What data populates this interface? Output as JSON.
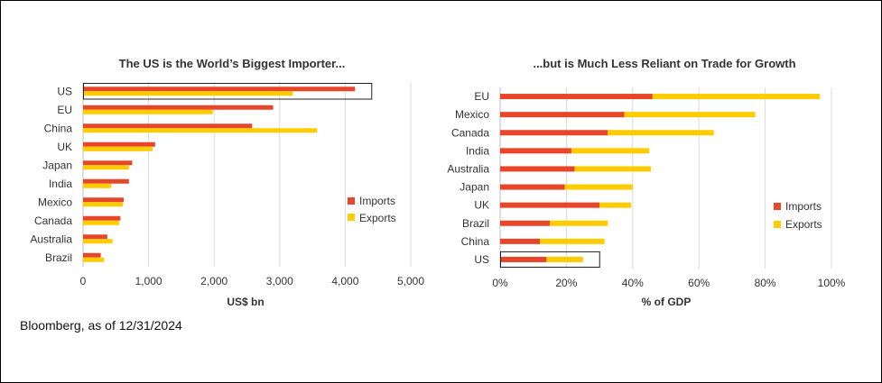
{
  "source": "Bloomberg, as of 12/31/2024",
  "colors": {
    "imports": "#E8462A",
    "exports": "#FFCC00",
    "grid": "#d9d9d9"
  },
  "chart_data": [
    {
      "type": "bar",
      "orientation": "horizontal",
      "title": "The US is the World’s Biggest Importer...",
      "xlabel": "US$ bn",
      "xlim": [
        0,
        5000
      ],
      "ticks": [
        "0",
        "1,000",
        "2,000",
        "3,000",
        "4,000",
        "5,000"
      ],
      "tick_values": [
        0,
        1000,
        2000,
        3000,
        4000,
        5000
      ],
      "categories": [
        "US",
        "EU",
        "China",
        "UK",
        "Japan",
        "India",
        "Mexico",
        "Canada",
        "Australia",
        "Brazil"
      ],
      "highlight": "US",
      "grid": true,
      "legend_position": "right",
      "series": [
        {
          "name": "Imports",
          "values": [
            4150,
            2900,
            2580,
            1100,
            750,
            700,
            620,
            570,
            370,
            270
          ]
        },
        {
          "name": "Exports",
          "values": [
            3200,
            1980,
            3570,
            1060,
            700,
            430,
            610,
            550,
            450,
            320
          ]
        }
      ]
    },
    {
      "type": "bar",
      "orientation": "horizontal",
      "stacked": true,
      "title": "...but is Much Less Reliant on Trade for Growth",
      "xlabel": "% of GDP",
      "xlim": [
        0,
        100
      ],
      "ticks": [
        "0%",
        "20%",
        "40%",
        "60%",
        "80%",
        "100%"
      ],
      "tick_values": [
        0,
        20,
        40,
        60,
        80,
        100
      ],
      "categories": [
        "EU",
        "Mexico",
        "Canada",
        "India",
        "Australia",
        "Japan",
        "UK",
        "Brazil",
        "China",
        "US"
      ],
      "highlight": "US",
      "grid": true,
      "legend_position": "right",
      "series": [
        {
          "name": "Imports",
          "values": [
            46,
            37.5,
            32.5,
            21.5,
            22.5,
            19.5,
            30,
            15,
            12,
            14
          ]
        },
        {
          "name": "Exports",
          "values": [
            50.5,
            39.5,
            32,
            23.5,
            23,
            20.5,
            9.5,
            17.5,
            19.5,
            11
          ]
        }
      ]
    }
  ]
}
